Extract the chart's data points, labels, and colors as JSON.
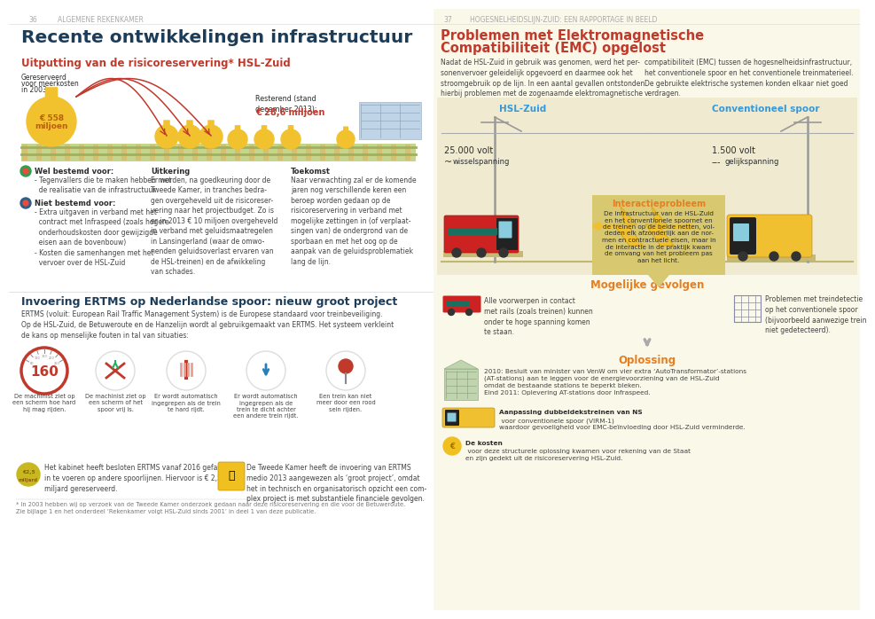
{
  "left_bg": "#ffffff",
  "right_bg": "#faf8e8",
  "left_header_small": "36",
  "left_header_big": "ALGEMENE REKENKAMER",
  "right_header_small": "37",
  "right_header_big": "HOGESNELHEIDSLIJN-ZUID: EEN RAPPORTAGE IN BEELD",
  "left_title": "Recente ontwikkelingen infrastructuur",
  "left_subtitle": "Uitputting van de risicoreservering* HSL-Zuid",
  "right_title_part1": "Problemen met Elektromagnetische",
  "right_title_part2": "Compatibiliteit (EMC) opgelost",
  "title_color_left": "#1c3d5a",
  "title_color_right": "#c0392b",
  "subtitle_color": "#c0392b",
  "moneybag_color": "#f2c12e",
  "moneybag_text": "#b8600a",
  "arrow_red": "#c0392b",
  "rail_fill": "#c5d68a",
  "rail_tie": "#d4c070",
  "amount_big_line1": "€ 558",
  "amount_big_line2": "miljoen",
  "amount_remaining_label": "Resterend (stand\ndecember 2013):",
  "amount_remaining": "€ 28,6 miljoen",
  "small_label1": "Gereserveerd",
  "small_label2": "voor meerkosten",
  "small_label3": "in 2003:",
  "well_label": "Wel bestemd voor:",
  "well_text": "- Tegenvallers die te maken hebben met\n  de realisatie van de infrastructuur",
  "not_label": "Niet bestemd voor:",
  "not_text": "- Extra uitgaven in verband met het\n  contract met Infraspeed (zoals hogere\n  onderhoudskosten door gewijzigde\n  eisen aan de bovenbouw)\n- Kosten die samenhangen met het\n  vervoer over de HSL-Zuid",
  "uitkering_title": "Uitkering",
  "uitkering_text": "Er worden, na goedkeuring door de\nTweede Kamer, in tranches bedra-\ngen overgeheveld uit de risicoreser-\nvering naar het projectbudget. Zo is\ner in 2013 € 10 miljoen overgeheveld\nin verband met geluidsmaatregelen\nin Lansingerland (waar de omwo-\nnenden geluidsoverlast ervaren van\nde HSL-treinen) en de afwikkeling\nvan schades.",
  "toekomst_title": "Toekomst",
  "toekomst_text": "Naar verwachting zal er de komende\njaren nog verschillende keren een\nberoep worden gedaan op de\nrisicoreservering in verband met\nmogelijke zettingen in (of verplaat-\nsingen van) de ondergrond van de\nsporbaan en met het oog op de\naanpak van de geluidsproblematiek\nlang de lijn.",
  "right_para_left": "Nadat de HSL-Zuid in gebruik was genomen, werd het per-\nsonenvervoer geleidelijk opgevoerd en daarmee ook het\nstroomgebruik op de lijn. In een aantal gevallen ontstonden\nhierbij problemen met de zogenaamde elektromagnetische",
  "right_para_right": "compatibiliteit (EMC) tussen de hogesnelheidsinfrastructuur,\nhet conventionele spoor en het conventionele treinmaterieel.\nDe gebruikte elektrische systemen konden elkaar niet goed\nverdragen.",
  "hsl_label": "HSL-Zuid",
  "conv_label": "Conventioneel spoor",
  "hsl_volt": "25.000 volt",
  "hsl_volt_sub": "wisselspanning",
  "conv_volt": "1.500 volt",
  "conv_volt_sub": "gelijkspanning",
  "interaction_title": "Interactieprobleem",
  "interaction_text": "De infrastructuur van de HSL-Zuid\nen het conventionele spoornet en\nde treinen op de beide netten, vol-\ndeden elk afzonderlijk aan de nor-\nmen en contractuele eisen, maar in\nde interactie in de praktijk kwam\nde omvang van het probleem pas\naan het licht.",
  "mogelijke_title": "Mogelijke gevolgen",
  "right_mogelijke1": "Alle voorwerpen in contact\nmet rails (zoals treinen) kunnen\nonder te hoge spanning komen\nte staan.",
  "right_mogelijke2": "Problemen met treindetectie\nop het conventionele spoor\n(bijvoorbeeld aanwezige trein\nniet gedetecteerd).",
  "oplossing_title": "Oplossing",
  "oplossing_text1": "2010: Besluit van minister van VenW om vier extra ‘AutoTransformator’-stations\n(AT-stations) aan te leggen voor de energievoorziening van de HSL-Zuid\nomdat de bestaande stations te beperkt bleken.\nEind 2011: Oplevering AT-stations door Infraspeed.",
  "aanpassing_bold": "Aanpassing dubbeldekstreinen van NS",
  "aanpassing_text": " voor conventionele spoor (VIRM-1)\nwaardoor gevoeligheid voor EMC-beïnvloeding door HSL-Zuid verminderde.",
  "kosten_bold": "De kosten",
  "kosten_text": " voor deze structurele oplossing kwamen voor rekening van de Staat\nen zijn gedekt uit de risicoreservering HSL-Zuid.",
  "invoering_title": "Invoering ERTMS op Nederlandse spoor: nieuw groot project",
  "invoering_para": "ERTMS (voluit: European Rail Traffic Management System) is de Europese standaard voor treinbeveiliging.\nOp de HSL-Zuid, de Betuweroute en de Hanzelijn wordt al gebruikgemaakt van ERTMS. Het systeem verkleint\nde kans op menselijke fouten in tal van situaties:",
  "speed_number": "160",
  "icons_labels": [
    "De machinist ziet op\neen scherm hoe hard\nhij mag rijden.",
    "De machinist ziet op\neen scherm of het\nspoor vrij is.",
    "Er wordt automatisch\ningegrepen als de trein\nte hard rijdt.",
    "Er wordt automatisch\ningegrepen als de\ntrein te dicht achter\neen andere trein rijdt.",
    "Een trein kan niet\nmeer door een rood\nsein rijden."
  ],
  "cabinet_text": "Het kabinet heeft besloten ERTMS vanaf 2016 gefaseerd\nin te voeren op andere spoorlijnen. Hiervoor is € 2,5\nmiljard gereserveerd.",
  "tweede_kamer_text": "De Tweede Kamer heeft de invoering van ERTMS\nmedio 2013 aangewezen als ‘groot project’, omdat\nhet in technisch en organisatorisch opzicht een com-\nplex project is met substantiele financiele gevolgen.",
  "footnote": "* In 2003 hebben wij op verzoek van de Tweede Kamer onderzoek gedaan naar deze risicoreservering en die voor de Betuweroute.\nZie bijlage 1 en het onderdeel ‘Rekenkamer volgt HSL-Zuid sinds 2001’ in deel 1 van deze publicatie.",
  "accent_orange": "#e67e22",
  "blue_label": "#3498db",
  "dark_text": "#2c2c2c",
  "mid_text": "#444444",
  "light_text": "#666666"
}
